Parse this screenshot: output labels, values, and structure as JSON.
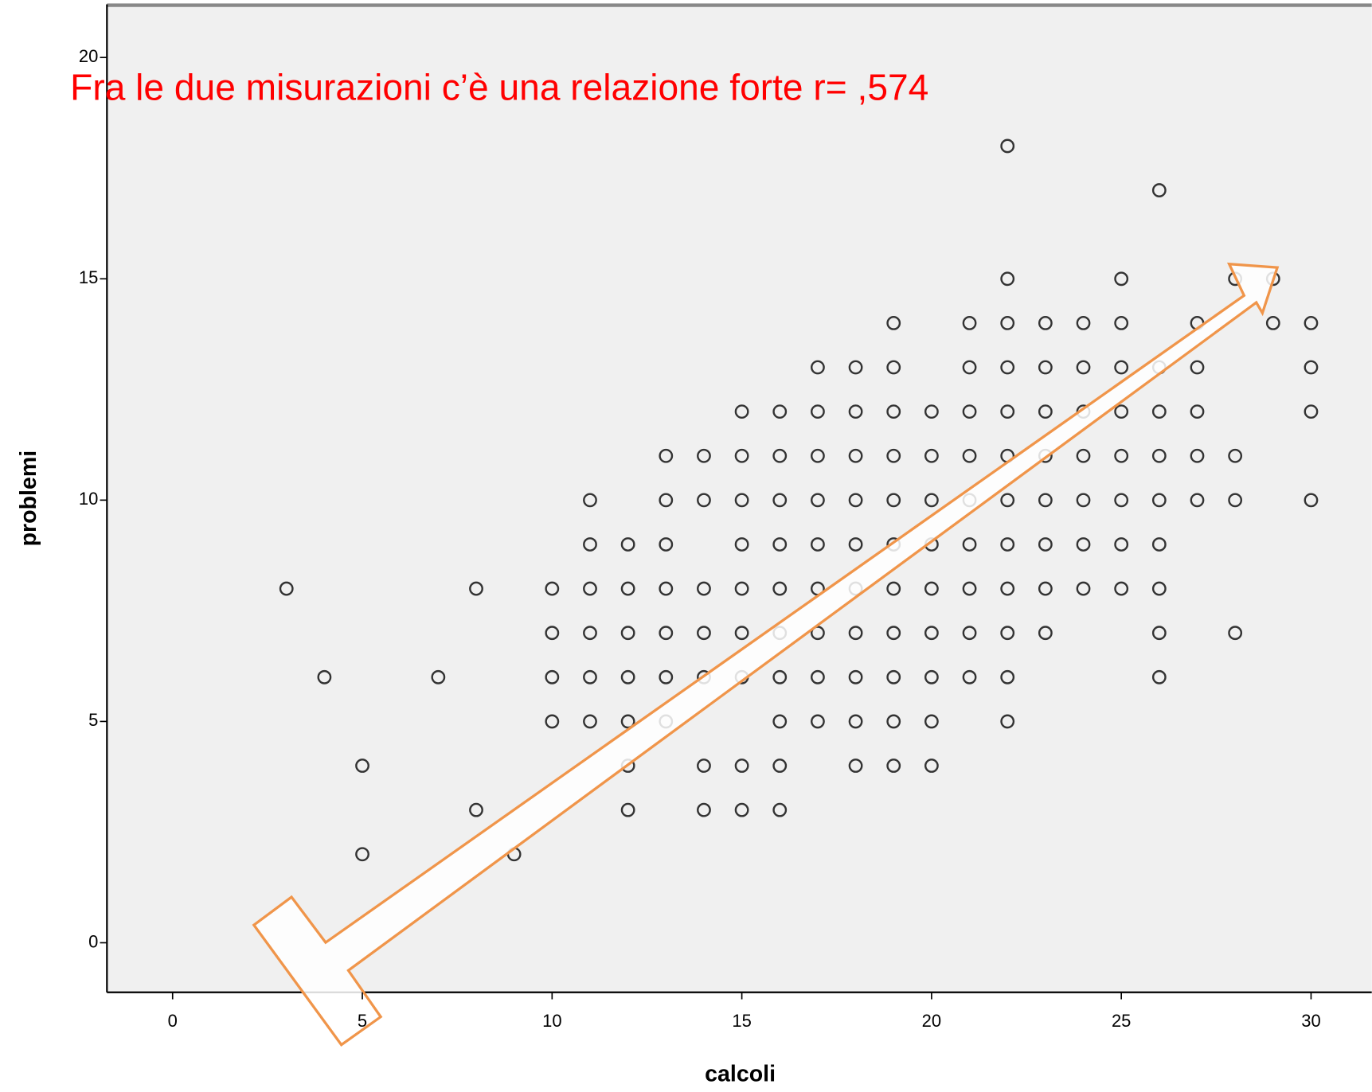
{
  "chart_data": {
    "type": "scatter",
    "annotation": "Fra le due misurazioni c’è una relazione forte r= ,574",
    "x_label": "calcoli",
    "y_label": "problemi",
    "x": [
      22,
      26,
      22,
      25,
      28,
      29,
      19,
      21,
      22,
      23,
      24,
      25,
      27,
      29,
      30,
      17,
      18,
      19,
      21,
      22,
      23,
      24,
      25,
      26,
      27,
      30,
      15,
      16,
      17,
      18,
      19,
      20,
      21,
      22,
      23,
      24,
      25,
      26,
      27,
      30,
      13,
      14,
      15,
      16,
      17,
      18,
      19,
      20,
      21,
      22,
      23,
      24,
      25,
      26,
      27,
      28,
      11,
      13,
      14,
      15,
      16,
      17,
      18,
      19,
      20,
      21,
      22,
      23,
      24,
      25,
      26,
      27,
      28,
      30,
      11,
      12,
      13,
      15,
      16,
      17,
      18,
      19,
      20,
      21,
      22,
      23,
      24,
      25,
      26,
      3,
      8,
      10,
      11,
      12,
      13,
      14,
      15,
      16,
      17,
      18,
      19,
      20,
      21,
      22,
      23,
      24,
      25,
      26,
      10,
      11,
      12,
      13,
      14,
      15,
      16,
      17,
      18,
      19,
      20,
      21,
      22,
      23,
      26,
      28,
      4,
      7,
      10,
      11,
      12,
      13,
      14,
      15,
      16,
      17,
      18,
      19,
      20,
      21,
      22,
      26,
      10,
      11,
      12,
      13,
      16,
      17,
      18,
      19,
      20,
      22,
      5,
      12,
      14,
      15,
      16,
      18,
      19,
      20,
      8,
      12,
      14,
      15,
      16,
      5,
      9
    ],
    "values": [
      18,
      17,
      15,
      15,
      15,
      15,
      14,
      14,
      14,
      14,
      14,
      14,
      14,
      14,
      14,
      13,
      13,
      13,
      13,
      13,
      13,
      13,
      13,
      13,
      13,
      13,
      12,
      12,
      12,
      12,
      12,
      12,
      12,
      12,
      12,
      12,
      12,
      12,
      12,
      12,
      11,
      11,
      11,
      11,
      11,
      11,
      11,
      11,
      11,
      11,
      11,
      11,
      11,
      11,
      11,
      11,
      10,
      10,
      10,
      10,
      10,
      10,
      10,
      10,
      10,
      10,
      10,
      10,
      10,
      10,
      10,
      10,
      10,
      10,
      9,
      9,
      9,
      9,
      9,
      9,
      9,
      9,
      9,
      9,
      9,
      9,
      9,
      9,
      9,
      8,
      8,
      8,
      8,
      8,
      8,
      8,
      8,
      8,
      8,
      8,
      8,
      8,
      8,
      8,
      8,
      8,
      8,
      8,
      7,
      7,
      7,
      7,
      7,
      7,
      7,
      7,
      7,
      7,
      7,
      7,
      7,
      7,
      7,
      7,
      6,
      6,
      6,
      6,
      6,
      6,
      6,
      6,
      6,
      6,
      6,
      6,
      6,
      6,
      6,
      6,
      5,
      5,
      5,
      5,
      5,
      5,
      5,
      5,
      5,
      5,
      4,
      4,
      4,
      4,
      4,
      4,
      4,
      4,
      3,
      3,
      3,
      3,
      3,
      2,
      2
    ],
    "color": "#333333",
    "xlim": [
      -1.73,
      31.6
    ],
    "ylim": [
      -1.12,
      21.2
    ],
    "xticks": [
      0,
      5,
      10,
      15,
      20,
      25,
      30
    ],
    "yticks": [
      0,
      5,
      10,
      15,
      20
    ]
  }
}
